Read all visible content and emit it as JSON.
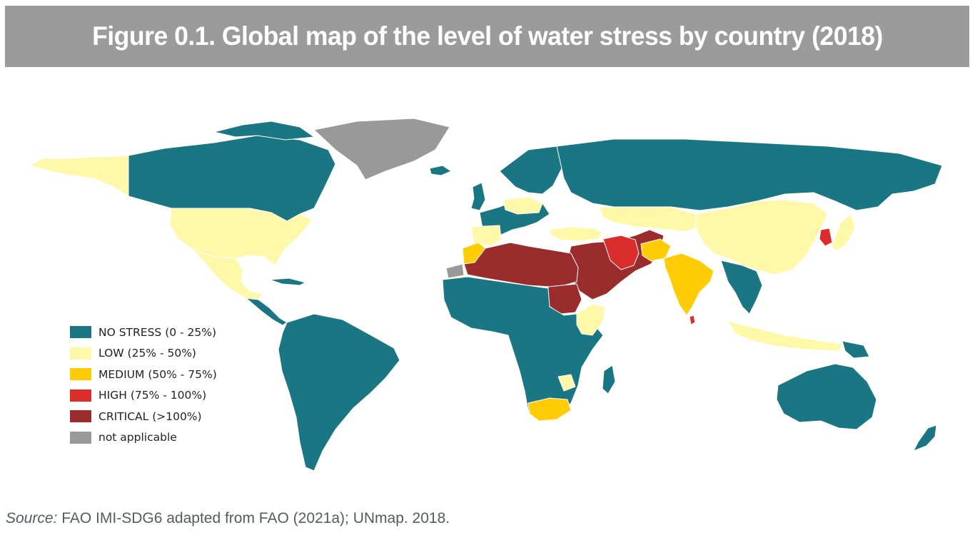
{
  "figure": {
    "title": "Figure 0.1.  Global map of the level of water stress by country (2018)"
  },
  "colors": {
    "no_stress": "#1a7683",
    "low": "#fff8a8",
    "medium": "#ffcc05",
    "high": "#dc2d2d",
    "critical": "#9b2c2c",
    "not_applicable": "#999999",
    "title_bar": "#9b9b9b"
  },
  "legend": {
    "items": [
      {
        "label": "NO STRESS (0 - 25%)",
        "color": "#1a7683"
      },
      {
        "label": "LOW (25% - 50%)",
        "color": "#fff8a8"
      },
      {
        "label": "MEDIUM (50% - 75%)",
        "color": "#ffcc05"
      },
      {
        "label": "HIGH (75% - 100%)",
        "color": "#dc2d2d"
      },
      {
        "label": "CRITICAL (>100%)",
        "color": "#9b2c2c"
      },
      {
        "label": "not applicable",
        "color": "#999999"
      }
    ]
  },
  "source": {
    "label": "Source:",
    "text": " FAO IMI-SDG6 adapted from FAO (2021a); UNmap. 2018."
  }
}
